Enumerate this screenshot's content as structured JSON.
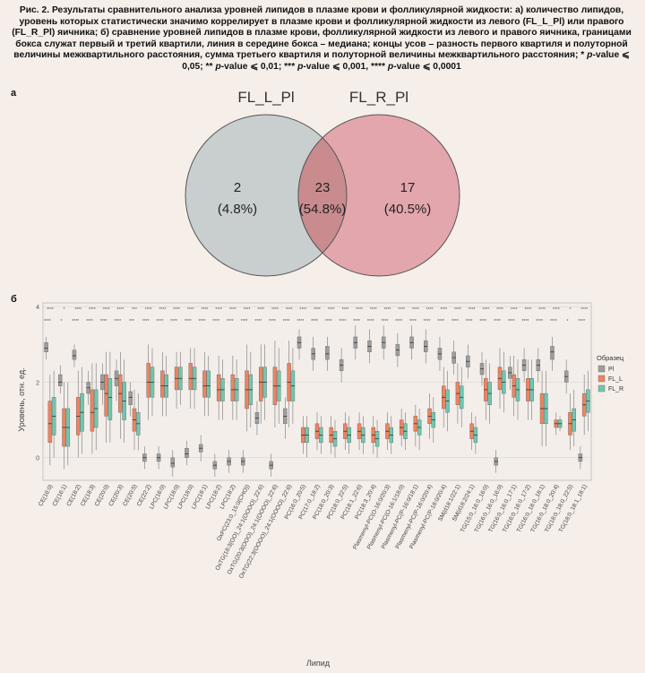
{
  "caption": {
    "lead": "Рис. 2. Результаты сравнительного анализа уровней липидов в плазме крови и фолликулярной жидкости: а) количество липидов, уровень которых статистически значимо коррелирует в плазме крови и фолликулярной жидкости из левого (FL_L_Pl) или правого (FL_R_Pl) яичника; б) сравнение уровней липидов в плазме крови, фолликулярной жидкости из левого и правого яичника, границами бокса служат первый и третий квартили, линия в середине бокса – медиана; концы усов – разность первого квартиля и полуторной величины межквартильного расстояния, сумма третьего квартиля и полуторной величины межквартильного расстояния; * ",
    "p1": "p",
    "t1": "-value ⩽ 0,05; ** ",
    "p2": "p",
    "t2": "-value ⩽ 0,01; *** ",
    "p3": "p",
    "t3": "-value ⩽ 0,001, **** ",
    "p4": "p",
    "t4": "-value ⩽ 0,0001"
  },
  "panel_a": "а",
  "panel_b": "б",
  "chart_data": [
    {
      "type": "venn",
      "sets": [
        "FL_L_Pl",
        "FL_R_Pl"
      ],
      "regions": [
        {
          "count": "2",
          "percent": "(4.8%)",
          "value": 2
        },
        {
          "count": "23",
          "percent": "(54.8%)",
          "value": 23
        },
        {
          "count": "17",
          "percent": "(40.5%)",
          "value": 17
        }
      ],
      "colors": [
        "#c9cfce",
        "#e3a6ac",
        "#c98b8e"
      ]
    },
    {
      "type": "boxplot",
      "xlabel": "Липид",
      "ylabel": "Уровень, отн. ед.",
      "yticks": [
        "4",
        "2",
        "0"
      ],
      "legend_title": "Образец",
      "series": [
        {
          "name": "Pl",
          "color": "#9e9e9e"
        },
        {
          "name": "FL_L",
          "color": "#ee8361"
        },
        {
          "name": "FL_R",
          "color": "#6fc7b0"
        }
      ],
      "categories": [
        "CE(16:0)",
        "CE(16:1)",
        "CE(18:2)",
        "CE(18:3)",
        "CE(20:0)",
        "CE(20:3)",
        "CE(20:5)",
        "CE(22:2)",
        "LPC(16:0)",
        "LPC(18:0)",
        "LPC(18:0)",
        "LPC(18:1)",
        "LPC(18:2)",
        "LPC(18:2)",
        "OxPC(23:0_15:0(CHO))",
        "OxTG(18:3(OO)_24:1(OOOO)_22:6)",
        "OxTG(20:3(OOO)_24:1(OOOO)_22:6)",
        "OxTG(22:3(OOOO)_24:1(OOOO)_22:6)",
        "PC(16:0_20:5)",
        "PC(17:0_18:2)",
        "PC(18:0_20:3)",
        "PC(18:0_22:5)",
        "PC(18:1_22:6)",
        "PC(18:3_20:4)",
        "Plasmenyl-PC(O-16:0/20:3)",
        "Plasmenyl-PC(O-16:1/18:0)",
        "Plasmenyl-PC(P-16:0/18:1)",
        "Plasmenyl-PC(P-16:0/20:4)",
        "Plasmenyl-PC(P-18:0/20:4)",
        "SM(d18:1/22:1)",
        "SM(d18:2/24:1)",
        "TG(15:0_16:0_16:0)",
        "TG(16:0_16:0_16:0)",
        "TG(16:0_16:0_17:1)",
        "TG(16:0_16:0_17:2)",
        "TG(16:0_18:0_18:1)",
        "TG(16:0_18:0_20:4)",
        "TG(18:0_18:0_22:5)",
        "TG(18:0_18:1_18:1)"
      ],
      "values": {
        "Pl": [
          [
            2.6,
            2.8,
            2.9,
            3.05,
            3.2
          ],
          [
            1.7,
            1.9,
            2.0,
            2.2,
            2.45
          ],
          [
            2.4,
            2.6,
            2.7,
            2.85,
            3.0
          ],
          [
            1.4,
            1.7,
            1.85,
            2.0,
            2.3
          ],
          [
            1.4,
            1.8,
            2.0,
            2.2,
            2.5
          ],
          [
            1.5,
            1.9,
            2.1,
            2.3,
            2.6
          ],
          [
            1.1,
            1.4,
            1.6,
            1.75,
            2.0
          ],
          [
            -0.3,
            -0.1,
            0.0,
            0.1,
            0.3
          ],
          [
            -0.3,
            -0.1,
            0.0,
            0.1,
            0.3
          ],
          [
            -0.5,
            -0.25,
            -0.15,
            0.0,
            0.2
          ],
          [
            -0.2,
            0.0,
            0.1,
            0.25,
            0.45
          ],
          [
            -0.1,
            0.15,
            0.25,
            0.35,
            0.6
          ],
          [
            -0.5,
            -0.3,
            -0.2,
            -0.1,
            0.1
          ],
          [
            -0.4,
            -0.2,
            -0.1,
            0.0,
            0.2
          ],
          [
            -0.4,
            -0.2,
            -0.1,
            0.0,
            0.2
          ],
          [
            0.6,
            0.9,
            1.05,
            1.2,
            1.5
          ],
          [
            -0.5,
            -0.3,
            -0.2,
            -0.1,
            0.1
          ],
          [
            0.5,
            0.9,
            1.1,
            1.3,
            1.6
          ],
          [
            2.6,
            2.9,
            3.05,
            3.2,
            3.4
          ],
          [
            2.3,
            2.6,
            2.75,
            2.9,
            3.2
          ],
          [
            2.3,
            2.6,
            2.75,
            2.95,
            3.2
          ],
          [
            2.0,
            2.3,
            2.45,
            2.6,
            2.9
          ],
          [
            2.6,
            2.9,
            3.05,
            3.2,
            3.5
          ],
          [
            2.5,
            2.8,
            2.95,
            3.1,
            3.4
          ],
          [
            2.6,
            2.9,
            3.05,
            3.2,
            3.5
          ],
          [
            2.4,
            2.7,
            2.85,
            3.0,
            3.3
          ],
          [
            2.6,
            2.9,
            3.05,
            3.2,
            3.5
          ],
          [
            2.5,
            2.8,
            2.95,
            3.1,
            3.4
          ],
          [
            2.3,
            2.6,
            2.75,
            2.9,
            3.2
          ],
          [
            2.2,
            2.5,
            2.65,
            2.8,
            3.1
          ],
          [
            2.1,
            2.4,
            2.55,
            2.7,
            3.0
          ],
          [
            1.9,
            2.2,
            2.35,
            2.5,
            2.8
          ],
          [
            -0.4,
            -0.2,
            -0.1,
            0.0,
            0.2
          ],
          [
            1.8,
            2.1,
            2.25,
            2.4,
            2.7
          ],
          [
            2.0,
            2.3,
            2.45,
            2.6,
            2.9
          ],
          [
            2.0,
            2.3,
            2.45,
            2.6,
            2.9
          ],
          [
            2.3,
            2.6,
            2.8,
            2.95,
            3.2
          ],
          [
            1.7,
            2.0,
            2.15,
            2.3,
            2.6
          ],
          [
            -0.3,
            -0.1,
            0.0,
            0.1,
            0.3
          ]
        ],
        "FL_L": [
          [
            -0.2,
            0.4,
            0.9,
            1.5,
            2.2
          ],
          [
            -0.3,
            0.3,
            0.8,
            1.3,
            2.0
          ],
          [
            0.0,
            0.6,
            1.1,
            1.6,
            2.3
          ],
          [
            0.1,
            0.7,
            1.2,
            1.8,
            2.5
          ],
          [
            0.4,
            1.1,
            1.7,
            2.2,
            2.8
          ],
          [
            0.5,
            1.2,
            1.7,
            2.2,
            2.8
          ],
          [
            0.2,
            0.7,
            1.0,
            1.3,
            1.8
          ],
          [
            1.0,
            1.6,
            2.0,
            2.5,
            3.0
          ],
          [
            1.1,
            1.6,
            1.9,
            2.3,
            2.8
          ],
          [
            1.3,
            1.8,
            2.1,
            2.4,
            2.8
          ],
          [
            1.3,
            1.8,
            2.1,
            2.5,
            2.9
          ],
          [
            1.1,
            1.6,
            1.9,
            2.3,
            2.8
          ],
          [
            1.0,
            1.5,
            1.8,
            2.2,
            2.7
          ],
          [
            1.0,
            1.5,
            1.8,
            2.2,
            2.7
          ],
          [
            0.7,
            1.3,
            1.8,
            2.3,
            3.0
          ],
          [
            0.9,
            1.5,
            2.0,
            2.4,
            3.0
          ],
          [
            0.8,
            1.4,
            1.9,
            2.4,
            3.1
          ],
          [
            0.8,
            1.5,
            2.0,
            2.5,
            3.1
          ],
          [
            0.1,
            0.4,
            0.6,
            0.8,
            1.1
          ],
          [
            0.2,
            0.5,
            0.7,
            0.9,
            1.2
          ],
          [
            0.1,
            0.4,
            0.6,
            0.8,
            1.1
          ],
          [
            0.2,
            0.5,
            0.7,
            0.9,
            1.2
          ],
          [
            0.2,
            0.5,
            0.7,
            0.9,
            1.2
          ],
          [
            0.1,
            0.4,
            0.6,
            0.8,
            1.1
          ],
          [
            0.2,
            0.5,
            0.7,
            0.9,
            1.2
          ],
          [
            0.3,
            0.6,
            0.8,
            1.0,
            1.3
          ],
          [
            0.3,
            0.7,
            0.9,
            1.1,
            1.4
          ],
          [
            0.5,
            0.9,
            1.1,
            1.3,
            1.7
          ],
          [
            0.8,
            1.3,
            1.6,
            1.9,
            2.4
          ],
          [
            0.9,
            1.4,
            1.7,
            2.0,
            2.5
          ],
          [
            0.2,
            0.5,
            0.7,
            0.9,
            1.2
          ],
          [
            1.0,
            1.5,
            1.8,
            2.1,
            2.6
          ],
          [
            1.3,
            1.8,
            2.1,
            2.4,
            2.9
          ],
          [
            1.1,
            1.6,
            1.9,
            2.2,
            2.7
          ],
          [
            1.0,
            1.5,
            1.8,
            2.1,
            2.6
          ],
          [
            0.3,
            0.9,
            1.3,
            1.7,
            2.3
          ],
          [
            0.6,
            0.8,
            0.9,
            1.0,
            1.2
          ],
          [
            0.2,
            0.6,
            0.9,
            1.2,
            1.7
          ],
          [
            0.6,
            1.1,
            1.4,
            1.7,
            2.2
          ]
        ],
        "FL_R": [
          [
            0.0,
            0.6,
            1.1,
            1.6,
            2.3
          ],
          [
            -0.2,
            0.3,
            0.8,
            1.3,
            2.0
          ],
          [
            0.1,
            0.7,
            1.2,
            1.7,
            2.4
          ],
          [
            0.2,
            0.8,
            1.3,
            1.8,
            2.5
          ],
          [
            0.4,
            1.0,
            1.6,
            2.1,
            2.8
          ],
          [
            0.4,
            1.0,
            1.5,
            2.0,
            2.6
          ],
          [
            0.2,
            0.6,
            0.9,
            1.2,
            1.7
          ],
          [
            1.1,
            1.6,
            2.0,
            2.4,
            2.9
          ],
          [
            1.1,
            1.6,
            1.9,
            2.2,
            2.7
          ],
          [
            1.4,
            1.8,
            2.1,
            2.4,
            2.8
          ],
          [
            1.3,
            1.8,
            2.1,
            2.4,
            2.9
          ],
          [
            1.1,
            1.6,
            1.9,
            2.3,
            2.7
          ],
          [
            1.0,
            1.5,
            1.8,
            2.1,
            2.6
          ],
          [
            1.0,
            1.5,
            1.8,
            2.1,
            2.6
          ],
          [
            0.8,
            1.4,
            1.8,
            2.2,
            2.8
          ],
          [
            1.0,
            1.6,
            2.0,
            2.4,
            3.0
          ],
          [
            0.9,
            1.5,
            1.9,
            2.3,
            2.9
          ],
          [
            0.9,
            1.5,
            1.9,
            2.3,
            2.9
          ],
          [
            0.0,
            0.4,
            0.6,
            0.8,
            1.1
          ],
          [
            0.1,
            0.4,
            0.6,
            0.8,
            1.1
          ],
          [
            0.0,
            0.3,
            0.5,
            0.7,
            1.0
          ],
          [
            0.1,
            0.4,
            0.6,
            0.8,
            1.1
          ],
          [
            0.1,
            0.4,
            0.6,
            0.8,
            1.1
          ],
          [
            0.0,
            0.3,
            0.5,
            0.7,
            1.0
          ],
          [
            0.1,
            0.4,
            0.6,
            0.8,
            1.1
          ],
          [
            0.2,
            0.5,
            0.7,
            0.9,
            1.2
          ],
          [
            0.2,
            0.6,
            0.8,
            1.0,
            1.3
          ],
          [
            0.4,
            0.8,
            1.0,
            1.2,
            1.6
          ],
          [
            0.7,
            1.2,
            1.5,
            1.8,
            2.3
          ],
          [
            0.8,
            1.3,
            1.6,
            1.9,
            2.4
          ],
          [
            0.1,
            0.4,
            0.6,
            0.8,
            1.1
          ],
          [
            0.9,
            1.4,
            1.7,
            2.0,
            2.5
          ],
          [
            1.2,
            1.7,
            2.0,
            2.3,
            2.8
          ],
          [
            1.0,
            1.5,
            1.8,
            2.1,
            2.6
          ],
          [
            1.0,
            1.5,
            1.8,
            2.1,
            2.6
          ],
          [
            0.3,
            0.9,
            1.3,
            1.7,
            2.3
          ],
          [
            0.7,
            0.8,
            0.9,
            1.0,
            1.1
          ],
          [
            0.3,
            0.7,
            1.0,
            1.3,
            1.8
          ],
          [
            0.7,
            1.2,
            1.5,
            1.8,
            2.3
          ]
        ]
      },
      "significance": [
        "****",
        "*",
        "****",
        "****",
        "****",
        "****",
        "***",
        "****",
        "****",
        "****",
        "****",
        "****",
        "****",
        "****",
        "****",
        "****",
        "****",
        "****",
        "****",
        "****",
        "****",
        "****",
        "****",
        "****",
        "****",
        "****",
        "****",
        "****",
        "****",
        "****",
        "****",
        "****",
        "****",
        "****",
        "****",
        "****",
        "****",
        "*",
        "****"
      ]
    }
  ]
}
